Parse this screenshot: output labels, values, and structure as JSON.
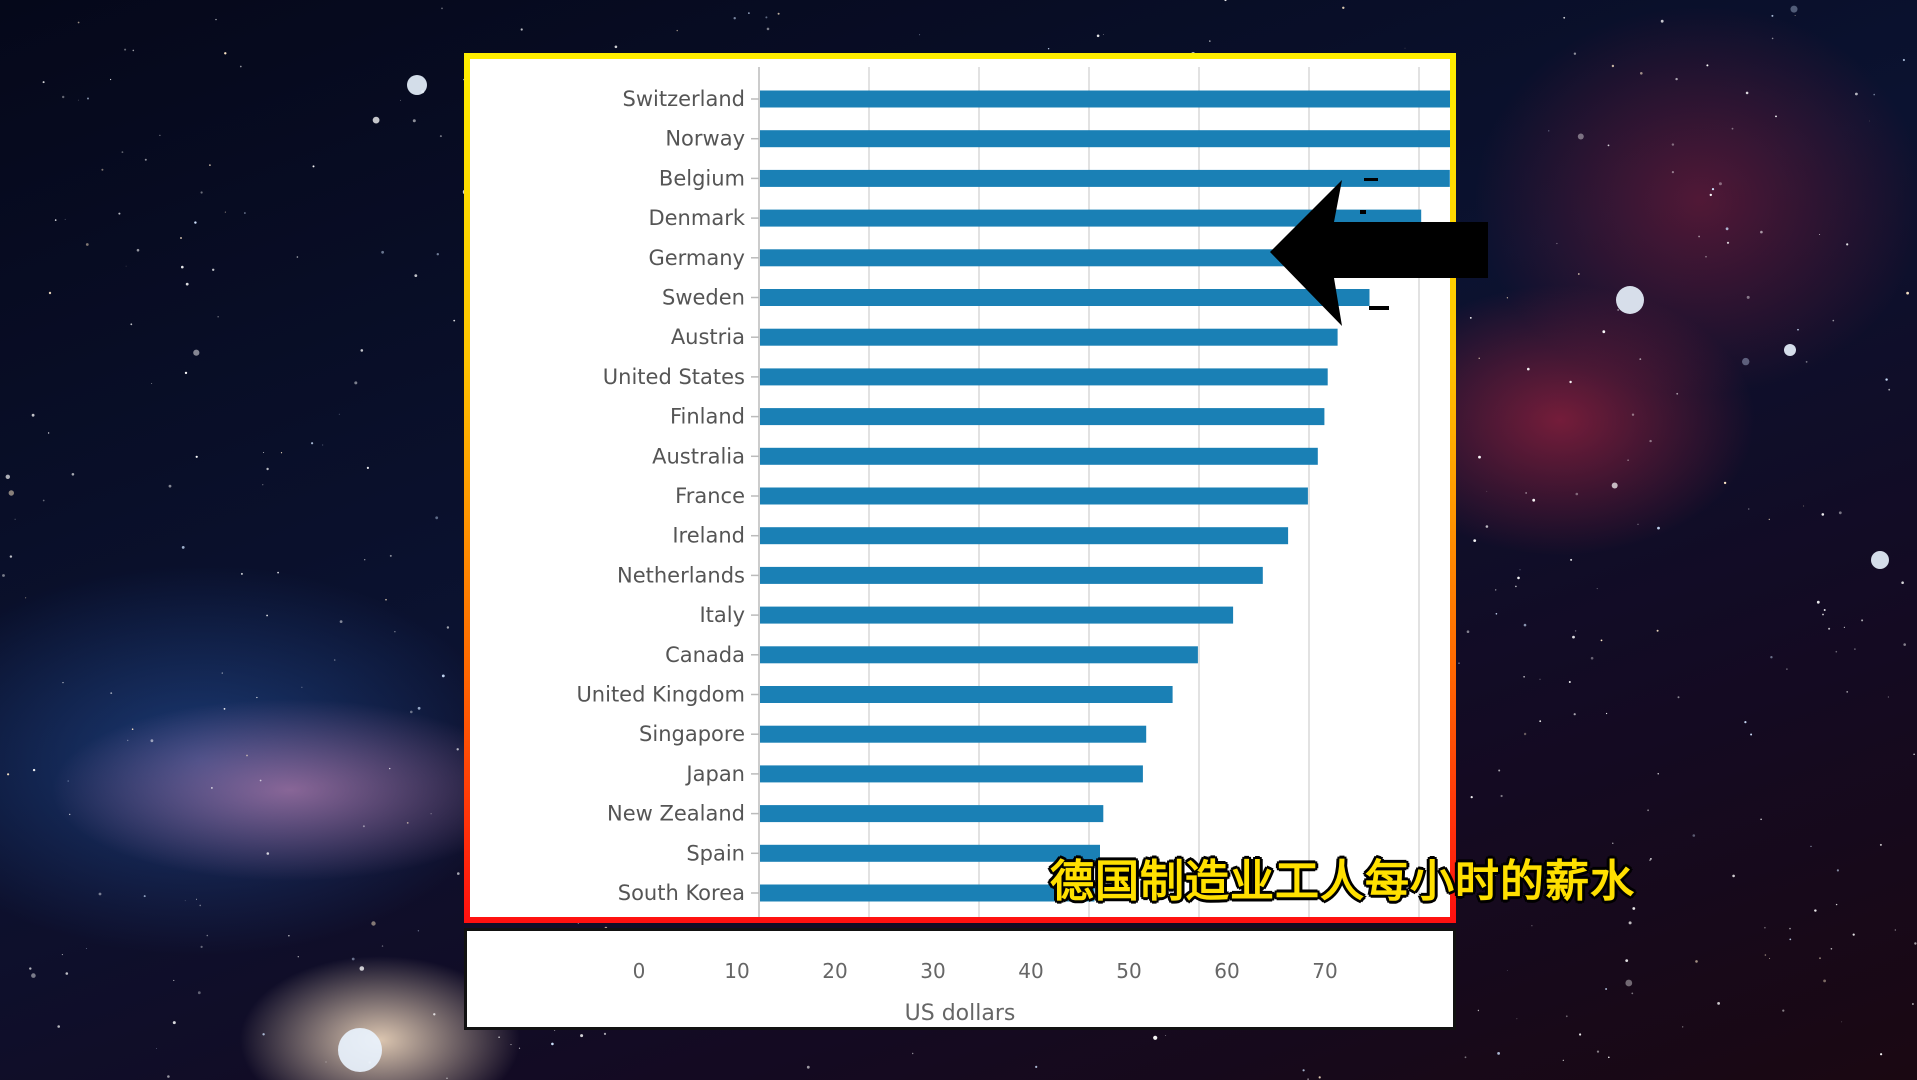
{
  "caption": "德国制造业工人每小时的薪水",
  "colors": {
    "bar": "#1a80b5",
    "grid": "#d8d8d8",
    "frame_top": "#ffee00",
    "frame_bottom": "#ff1010",
    "caption": "#ffe000"
  },
  "icons": {
    "pointer": "black-arrow-icon"
  },
  "chart_data": {
    "type": "bar",
    "orientation": "horizontal",
    "title": "",
    "xlabel": "US dollars",
    "ylabel": "",
    "xlim": [
      0,
      82
    ],
    "x_ticks": [
      0,
      10,
      20,
      30,
      40,
      50,
      60,
      70
    ],
    "grid": true,
    "legend": "none",
    "categories": [
      "Switzerland",
      "Norway",
      "Belgium",
      "Denmark",
      "Germany",
      "Sweden",
      "Austria",
      "United States",
      "Finland",
      "Australia",
      "France",
      "Ireland",
      "Netherlands",
      "Italy",
      "Canada",
      "United Kingdom",
      "Singapore",
      "Japan",
      "New Zealand",
      "Spain",
      "South Korea"
    ],
    "values": [
      80,
      64.2,
      62.8,
      60.2,
      57.2,
      55.5,
      52.6,
      51.7,
      51.4,
      50.8,
      49.9,
      48.1,
      45.8,
      43.1,
      39.9,
      37.6,
      35.2,
      34.9,
      31.3,
      31.0,
      30.5
    ]
  }
}
